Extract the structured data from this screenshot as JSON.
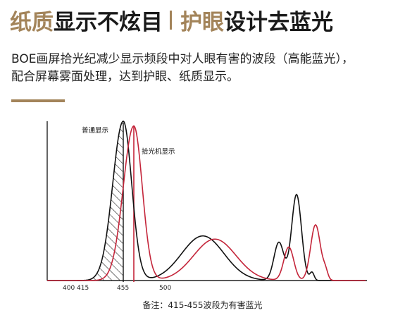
{
  "headline": {
    "part1_accent": "纸质",
    "part1_rest": "显示不炫目",
    "part2_accent": "护眼",
    "part2_rest": "设计去蓝光",
    "accent_color": "#a3845a"
  },
  "description": {
    "line1": "BOE画屏拾光纪减少显示频段中对人眼有害的波段（高能蓝光），",
    "line2": "配合屏幕雾面处理，达到护眼、纸质显示。"
  },
  "chart_data": {
    "type": "line",
    "x_tick_labels": [
      "400",
      "415",
      "455",
      "500"
    ],
    "marker_lines": [
      {
        "x": 455,
        "color": "#111111"
      },
      {
        "x": 470,
        "color": "#c4253a"
      }
    ],
    "hatched_band": {
      "from": 415,
      "to": 455,
      "meaning": "有害波段"
    },
    "series": [
      {
        "name": "普通显示",
        "color": "#111111",
        "peaks_relative": [
          1.0,
          0.28,
          0.24,
          0.54
        ]
      },
      {
        "name": "拾光机显示",
        "color": "#c4253a",
        "peaks_relative": [
          0.97,
          0.26,
          0.21,
          0.35
        ]
      }
    ]
  },
  "caption": "备注：415-455波段为有害蓝光"
}
